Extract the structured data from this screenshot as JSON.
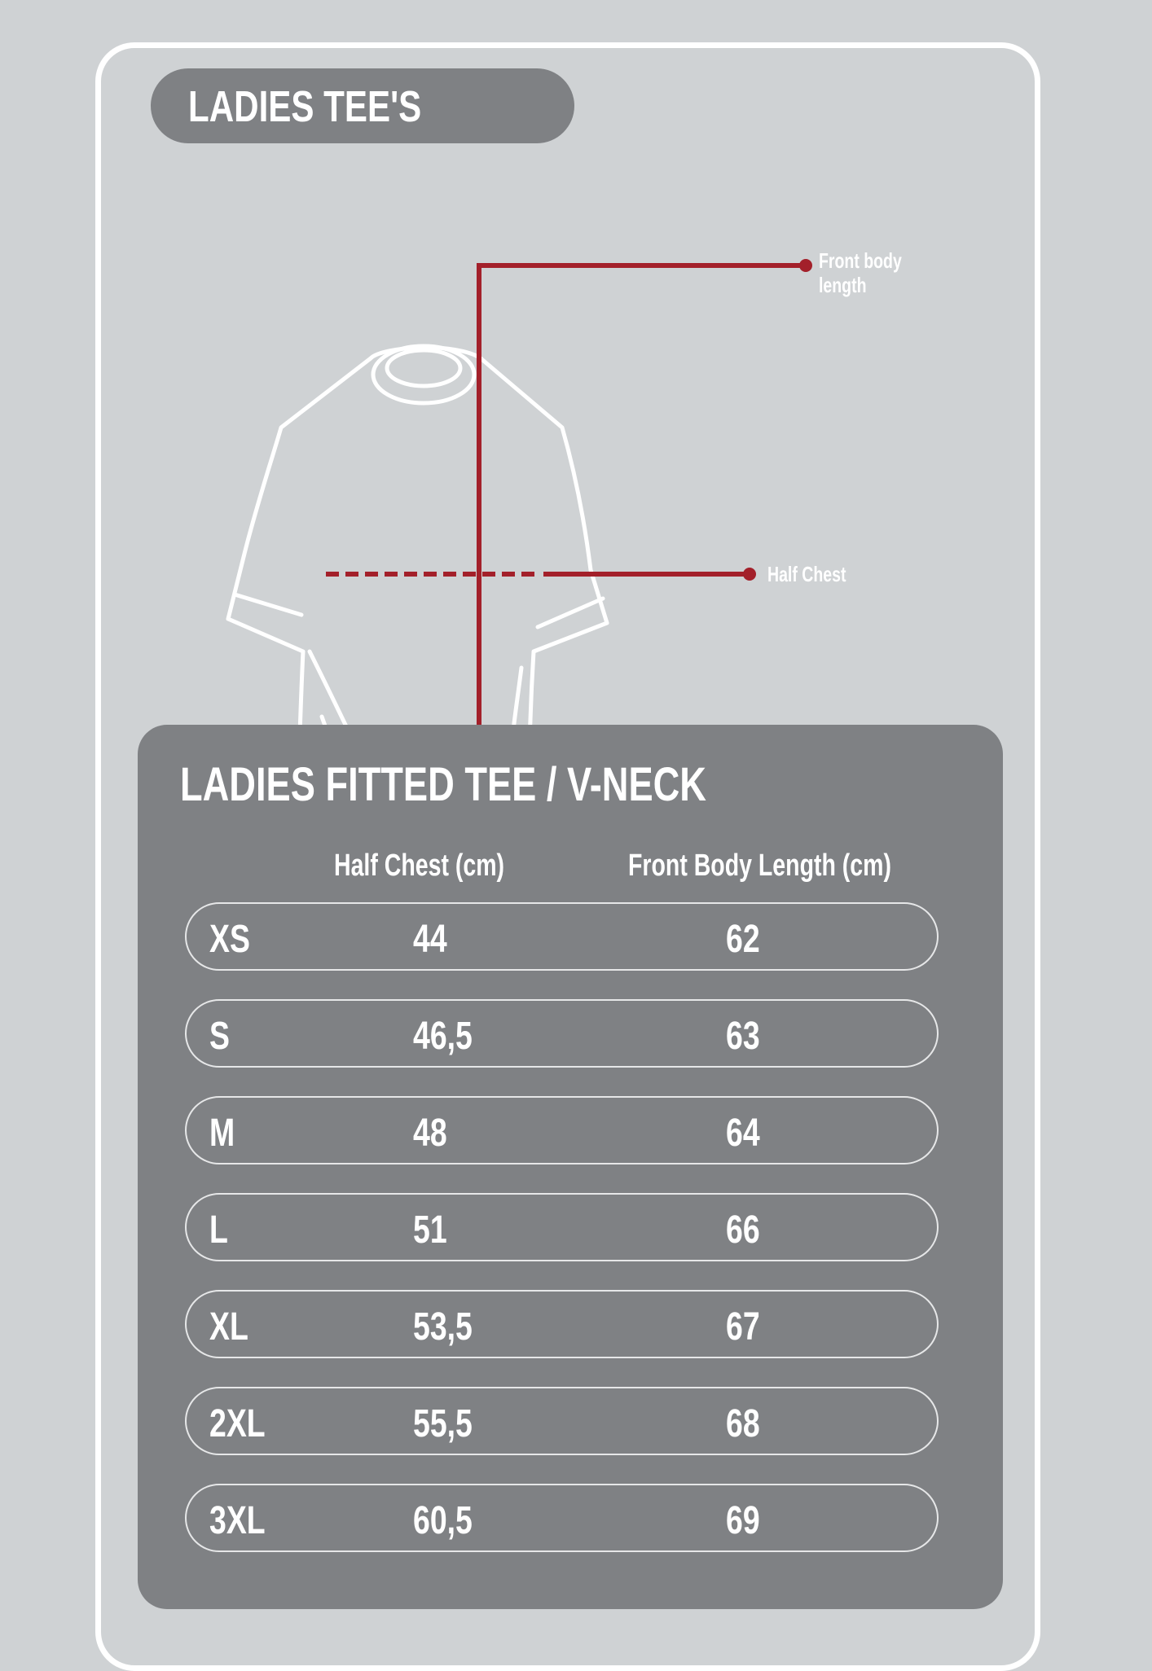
{
  "colors": {
    "background": "#cfd2d4",
    "panel": "#7f8184",
    "accent_red": "#a3202a",
    "line": "#ffffff"
  },
  "header": {
    "title": "LADIES TEE'S"
  },
  "diagram": {
    "icon": "t-shirt-outline",
    "front_body_length_label": "Front body\nlength",
    "half_chest_label": "Half Chest"
  },
  "table": {
    "title": "LADIES FITTED TEE / V-NECK",
    "columns": [
      "",
      "Half Chest (cm)",
      "Front Body Length (cm)"
    ],
    "rows": [
      [
        "XS",
        "44",
        "62"
      ],
      [
        "S",
        "46,5",
        "63"
      ],
      [
        "M",
        "48",
        "64"
      ],
      [
        "L",
        "51",
        "66"
      ],
      [
        "XL",
        "53,5",
        "67"
      ],
      [
        "2XL",
        "55,5",
        "68"
      ],
      [
        "3XL",
        "60,5",
        "69"
      ]
    ]
  }
}
